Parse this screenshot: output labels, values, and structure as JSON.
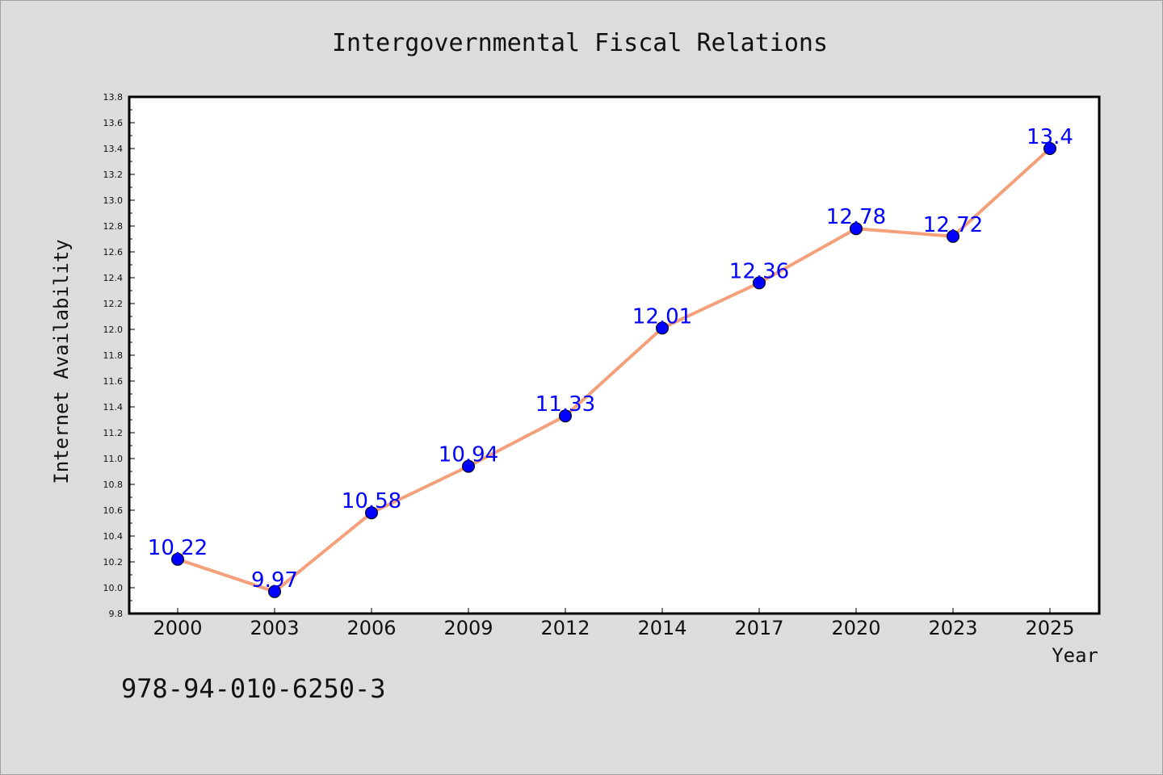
{
  "chart_data": {
    "type": "line",
    "title": "Intergovernmental Fiscal Relations",
    "xlabel": "Year",
    "ylabel": "Internet Availability",
    "categories": [
      "2000",
      "2003",
      "2006",
      "2009",
      "2012",
      "2014",
      "2017",
      "2020",
      "2023",
      "2025"
    ],
    "series": [
      {
        "values": [
          10.22,
          9.97,
          10.58,
          10.94,
          11.33,
          12.01,
          12.36,
          12.78,
          12.72,
          13.4
        ]
      }
    ],
    "data_labels": [
      "10.22",
      "9.97",
      "10.58",
      "10.94",
      "11.33",
      "12.01",
      "12.36",
      "12.78",
      "12.72",
      "13.4"
    ],
    "ylim": [
      9.8,
      13.8
    ],
    "yticks": [
      "9.8",
      "10.0",
      "10.2",
      "10.4",
      "10.6",
      "10.8",
      "11.0",
      "11.2",
      "11.4",
      "11.6",
      "11.8",
      "12.0",
      "12.2",
      "12.4",
      "12.6",
      "12.8",
      "13.0",
      "13.2",
      "13.4",
      "13.6",
      "13.8"
    ],
    "grid": false,
    "colors": {
      "line": "#f4a07a",
      "marker": "#0000ff",
      "label": "#0000ff",
      "background": "#dcdcdc",
      "plot_background": "#ffffff"
    }
  },
  "footer": {
    "isbn": "978-94-010-6250-3"
  }
}
